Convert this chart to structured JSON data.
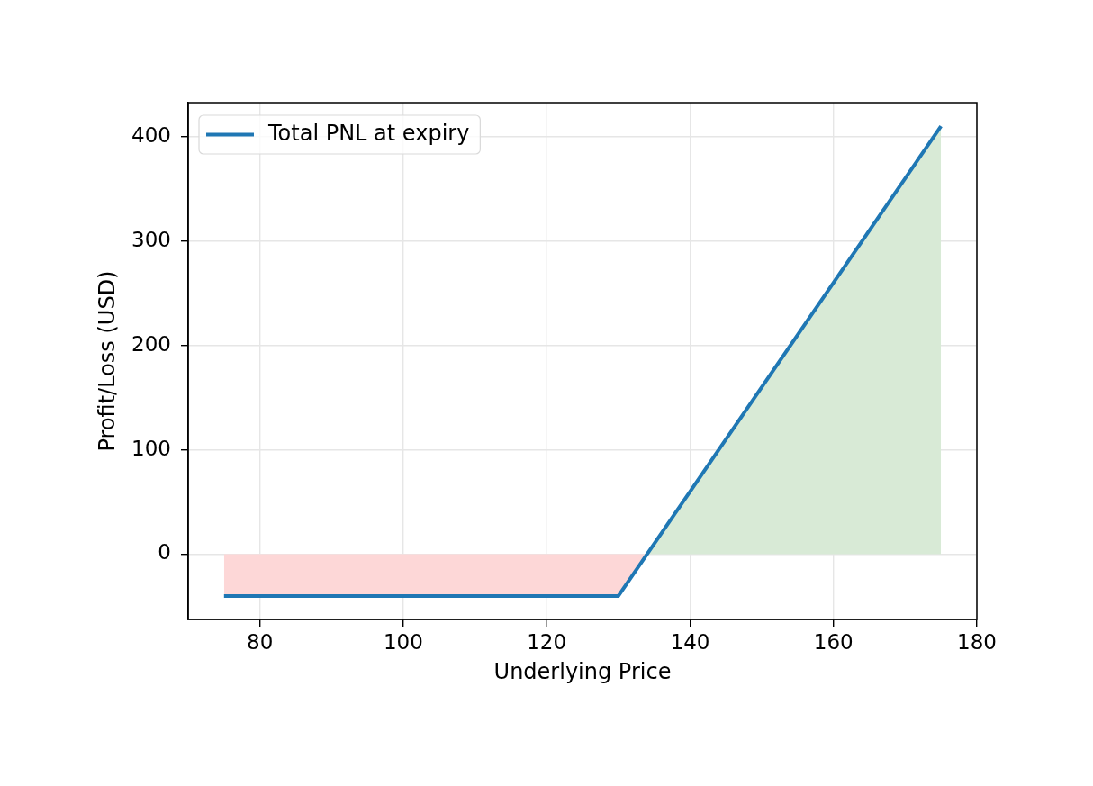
{
  "chart_data": {
    "type": "line",
    "xlabel": "Underlying Price",
    "ylabel": "Profit/Loss (USD)",
    "series": [
      {
        "name": "Total PNL at expiry",
        "color": "#1f77b4",
        "x": [
          75,
          130,
          175
        ],
        "values": [
          -40,
          -40,
          410
        ]
      },
      {
        "type": "area",
        "color": "#fdd7d7",
        "x": [
          75,
          130,
          134
        ],
        "values": [
          -40,
          -40,
          0
        ]
      },
      {
        "type": "area",
        "color": "#d8ead6",
        "x": [
          134,
          175
        ],
        "values": [
          0,
          410
        ]
      }
    ],
    "xlim": [
      70,
      180
    ],
    "ylim": [
      -62.5,
      432.5
    ],
    "xticks": [
      80,
      100,
      120,
      140,
      160,
      180
    ],
    "yticks": [
      0,
      100,
      200,
      300,
      400
    ],
    "grid": true,
    "legend": "top left"
  }
}
